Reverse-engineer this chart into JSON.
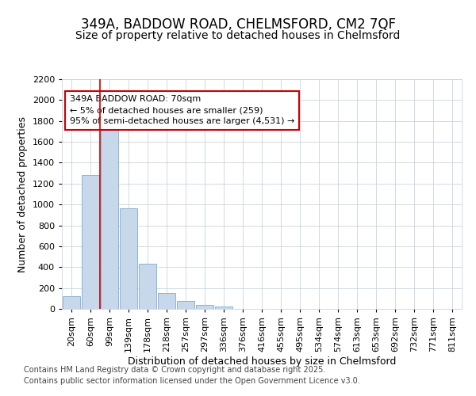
{
  "title_line1": "349A, BADDOW ROAD, CHELMSFORD, CM2 7QF",
  "title_line2": "Size of property relative to detached houses in Chelmsford",
  "xlabel": "Distribution of detached houses by size in Chelmsford",
  "ylabel": "Number of detached properties",
  "categories": [
    "20sqm",
    "60sqm",
    "99sqm",
    "139sqm",
    "178sqm",
    "218sqm",
    "257sqm",
    "297sqm",
    "336sqm",
    "376sqm",
    "416sqm",
    "455sqm",
    "495sqm",
    "534sqm",
    "574sqm",
    "613sqm",
    "653sqm",
    "692sqm",
    "732sqm",
    "771sqm",
    "811sqm"
  ],
  "values": [
    120,
    1280,
    1750,
    960,
    430,
    150,
    75,
    35,
    25,
    0,
    0,
    0,
    0,
    0,
    0,
    0,
    0,
    0,
    0,
    0,
    0
  ],
  "bar_color": "#c8d8eb",
  "bar_edge_color": "#7aadd4",
  "ylim": [
    0,
    2200
  ],
  "yticks": [
    0,
    200,
    400,
    600,
    800,
    1000,
    1200,
    1400,
    1600,
    1800,
    2000,
    2200
  ],
  "vline_x_idx": 1,
  "vline_x_offset": 0.5,
  "vline_color": "#cc0000",
  "annotation_text": "349A BADDOW ROAD: 70sqm\n← 5% of detached houses are smaller (259)\n95% of semi-detached houses are larger (4,531) →",
  "annotation_box_color": "#ffffff",
  "annotation_box_edge": "#cc0000",
  "footer_line1": "Contains HM Land Registry data © Crown copyright and database right 2025.",
  "footer_line2": "Contains public sector information licensed under the Open Government Licence v3.0.",
  "bg_color": "#ffffff",
  "plot_bg_color": "#ffffff",
  "grid_color": "#c8d4e0",
  "title_fontsize": 12,
  "subtitle_fontsize": 10,
  "axis_label_fontsize": 9,
  "tick_fontsize": 8,
  "footer_fontsize": 7,
  "annotation_fontsize": 8
}
